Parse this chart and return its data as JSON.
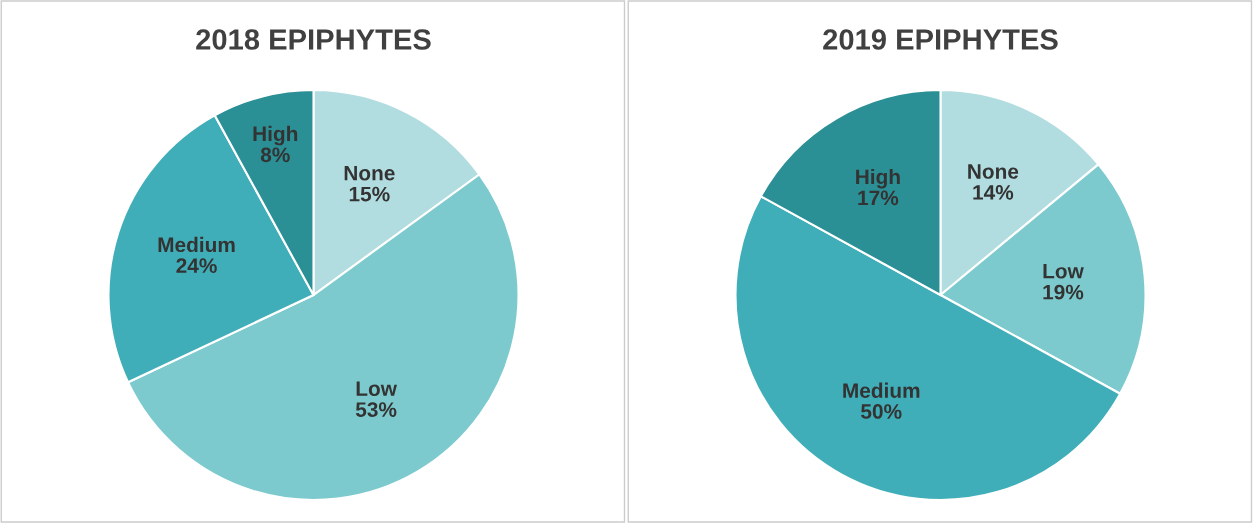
{
  "chart_data": [
    {
      "type": "pie",
      "title": "2018 EPIPHYTES",
      "categories": [
        "None",
        "Low",
        "Medium",
        "High"
      ],
      "values": [
        15,
        53,
        24,
        8
      ],
      "value_labels": [
        "15%",
        "53%",
        "24%",
        "8%"
      ],
      "colors": [
        "#b2dde0",
        "#7ccace",
        "#40aeb8",
        "#2b8f96"
      ]
    },
    {
      "type": "pie",
      "title": "2019 EPIPHYTES",
      "categories": [
        "None",
        "Low",
        "Medium",
        "High"
      ],
      "values": [
        14,
        19,
        50,
        17
      ],
      "value_labels": [
        "14%",
        "19%",
        "50%",
        "17%"
      ],
      "colors": [
        "#b2dde0",
        "#7ccace",
        "#40aeb8",
        "#2b8f96"
      ]
    }
  ]
}
